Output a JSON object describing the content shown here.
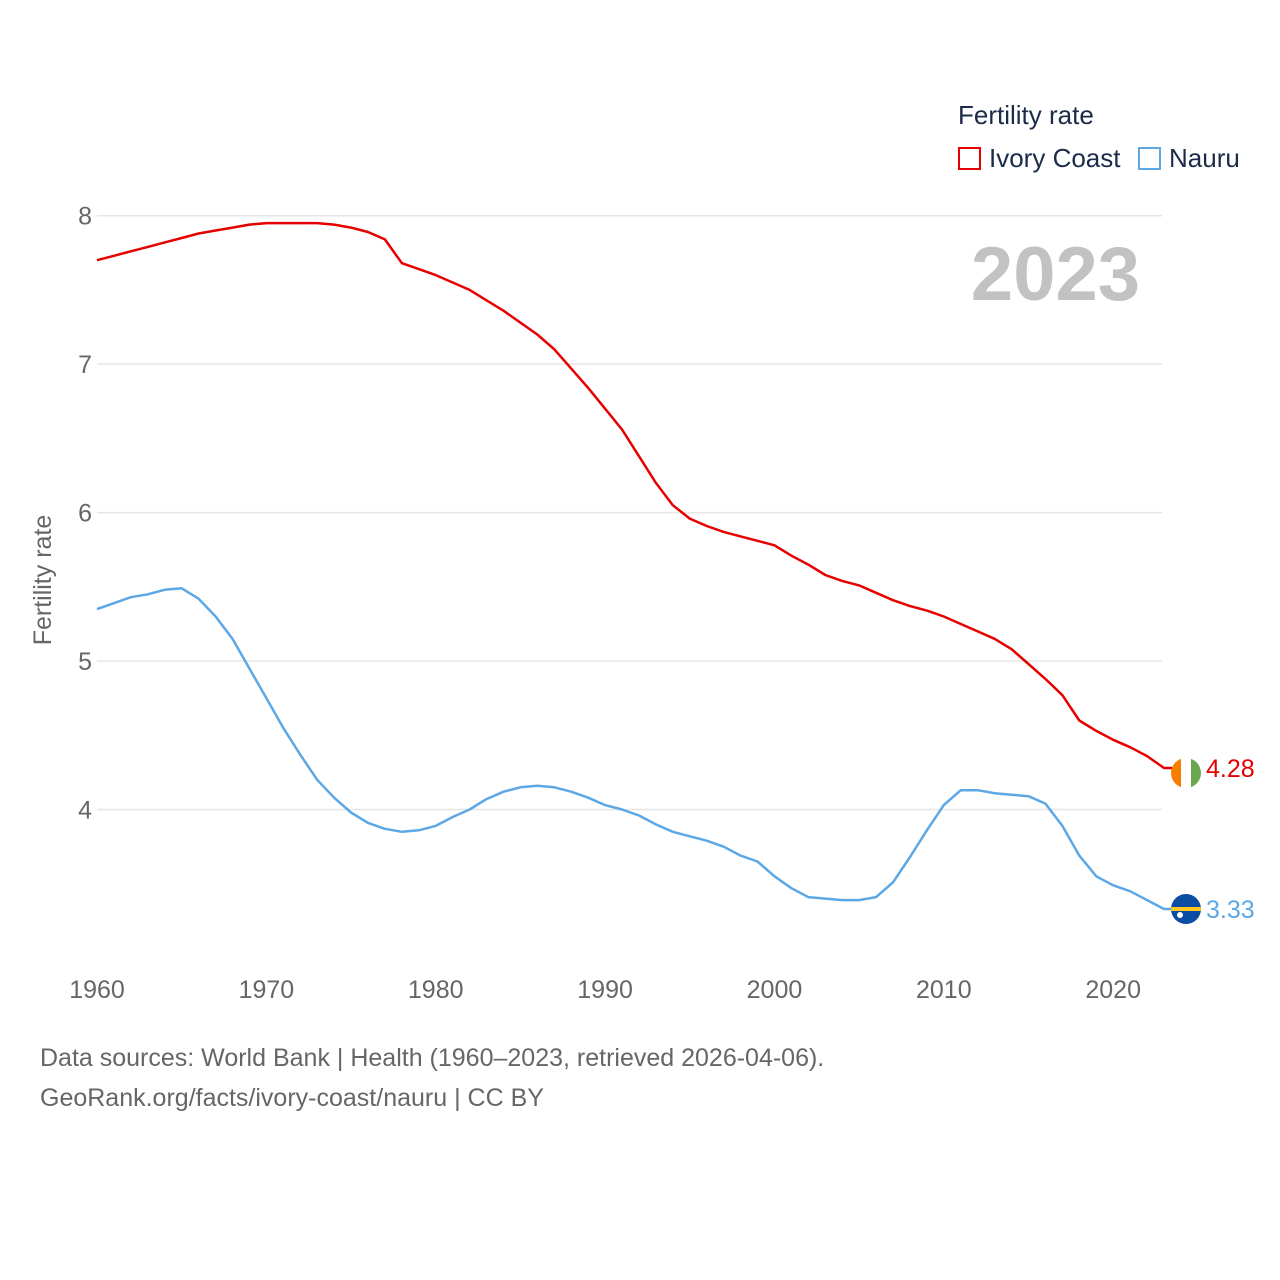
{
  "chart_data": {
    "type": "line",
    "title": "Fertility rate",
    "ylabel": "Fertility rate",
    "xlabel": "",
    "year_label": "2023",
    "xlim": [
      1960,
      2023
    ],
    "ylim": [
      3.0,
      8.2
    ],
    "xticks": [
      1960,
      1970,
      1980,
      1990,
      2000,
      2010,
      2020
    ],
    "yticks": [
      4,
      5,
      6,
      7,
      8
    ],
    "grid": true,
    "legend_position": "top-right",
    "x": [
      1960,
      1961,
      1962,
      1963,
      1964,
      1965,
      1966,
      1967,
      1968,
      1969,
      1970,
      1971,
      1972,
      1973,
      1974,
      1975,
      1976,
      1977,
      1978,
      1979,
      1980,
      1981,
      1982,
      1983,
      1984,
      1985,
      1986,
      1987,
      1988,
      1989,
      1990,
      1991,
      1992,
      1993,
      1994,
      1995,
      1996,
      1997,
      1998,
      1999,
      2000,
      2001,
      2002,
      2003,
      2004,
      2005,
      2006,
      2007,
      2008,
      2009,
      2010,
      2011,
      2012,
      2013,
      2014,
      2015,
      2016,
      2017,
      2018,
      2019,
      2020,
      2021,
      2022,
      2023
    ],
    "series": [
      {
        "name": "Ivory Coast",
        "color": "#e60000",
        "end_label": "4.28",
        "values": [
          7.7,
          7.73,
          7.76,
          7.79,
          7.82,
          7.85,
          7.88,
          7.9,
          7.92,
          7.94,
          7.95,
          7.95,
          7.95,
          7.95,
          7.94,
          7.92,
          7.89,
          7.84,
          7.68,
          7.64,
          7.6,
          7.55,
          7.5,
          7.43,
          7.36,
          7.28,
          7.2,
          7.1,
          6.97,
          6.84,
          6.7,
          6.56,
          6.38,
          6.2,
          6.05,
          5.96,
          5.91,
          5.87,
          5.84,
          5.81,
          5.78,
          5.71,
          5.65,
          5.58,
          5.54,
          5.51,
          5.46,
          5.41,
          5.37,
          5.34,
          5.3,
          5.25,
          5.2,
          5.15,
          5.08,
          4.98,
          4.88,
          4.77,
          4.6,
          4.53,
          4.47,
          4.42,
          4.36,
          4.28
        ]
      },
      {
        "name": "Nauru",
        "color": "#5ca8e6",
        "end_label": "3.33",
        "values": [
          5.35,
          5.39,
          5.43,
          5.45,
          5.48,
          5.49,
          5.42,
          5.3,
          5.15,
          4.95,
          4.75,
          4.55,
          4.37,
          4.2,
          4.08,
          3.98,
          3.91,
          3.87,
          3.85,
          3.86,
          3.89,
          3.95,
          4.0,
          4.07,
          4.12,
          4.15,
          4.16,
          4.15,
          4.12,
          4.08,
          4.03,
          4.0,
          3.96,
          3.9,
          3.85,
          3.82,
          3.79,
          3.75,
          3.69,
          3.65,
          3.55,
          3.47,
          3.41,
          3.4,
          3.39,
          3.39,
          3.41,
          3.51,
          3.68,
          3.86,
          4.03,
          4.13,
          4.13,
          4.11,
          4.1,
          4.09,
          4.04,
          3.89,
          3.69,
          3.55,
          3.49,
          3.45,
          3.39,
          3.33
        ]
      }
    ]
  },
  "legend": {
    "title": "Fertility rate",
    "items": [
      "Ivory Coast",
      "Nauru"
    ]
  },
  "footer": {
    "line1": "Data sources: World Bank | Health (1960–2023, retrieved 2026-04-06).",
    "line2": "GeoRank.org/facts/ivory-coast/nauru | CC BY"
  }
}
